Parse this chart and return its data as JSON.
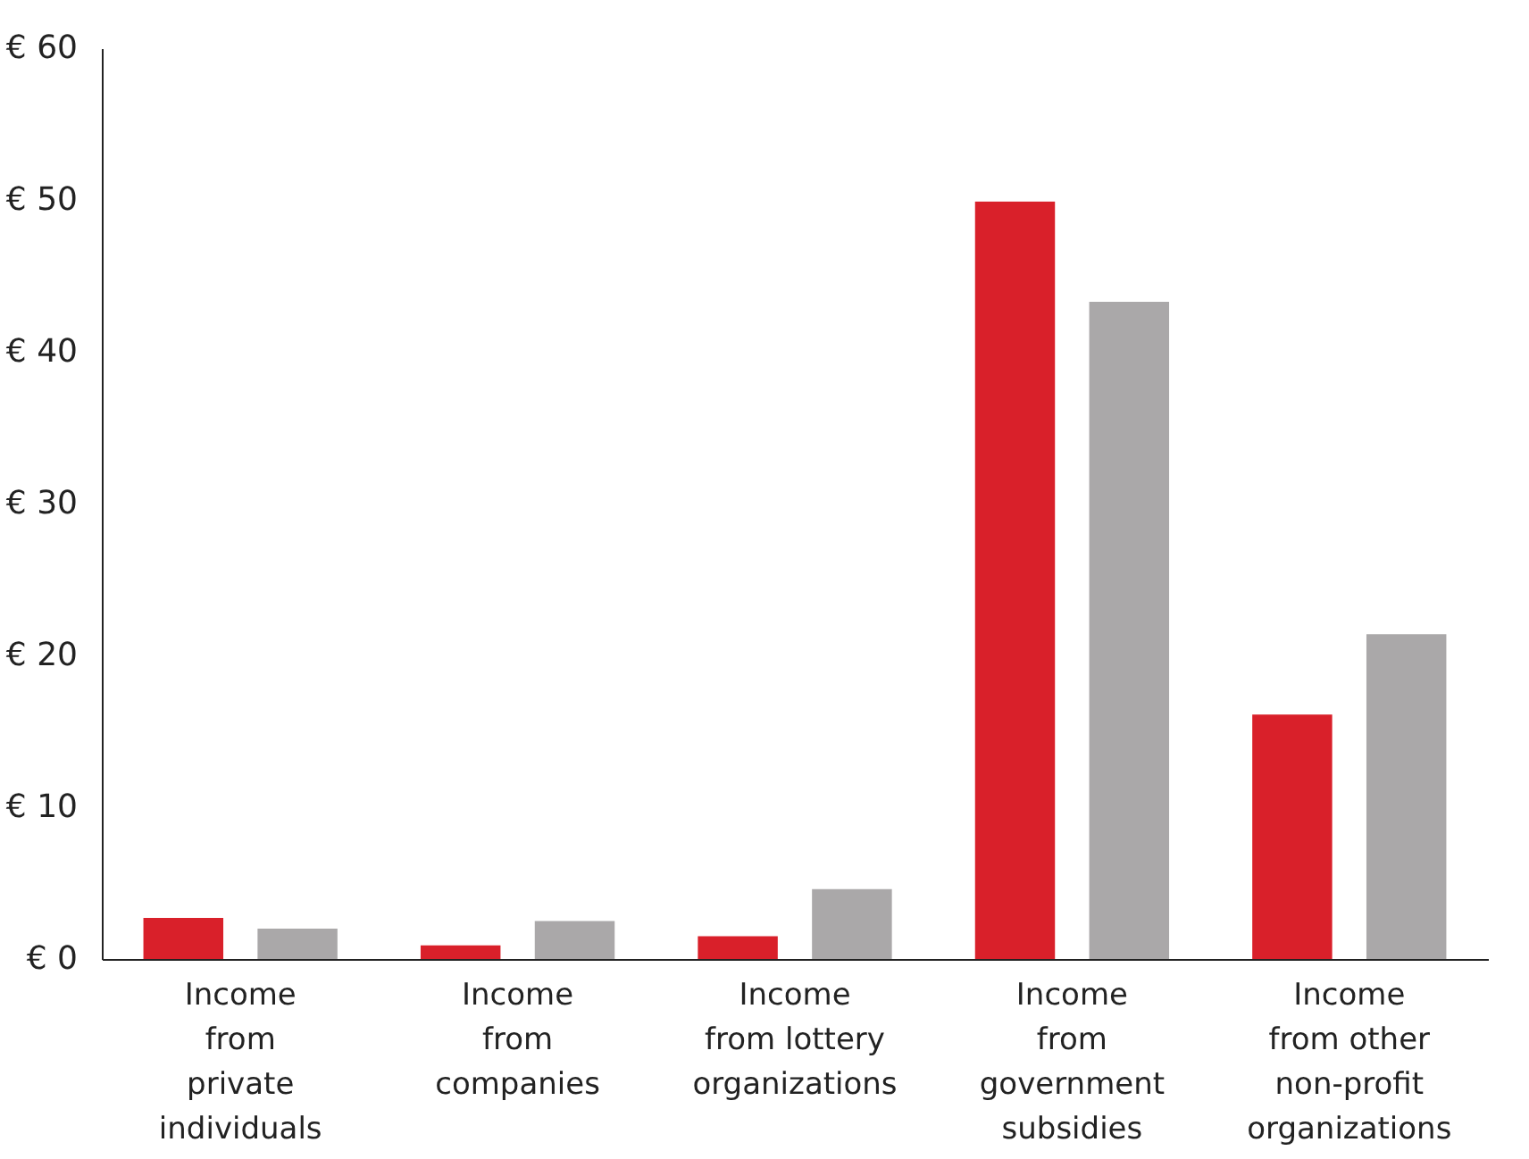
{
  "chart_data": {
    "type": "bar",
    "categories": [
      "Income\nfrom\nprivate\nindividuals",
      "Income\nfrom\ncompanies",
      "Income\nfrom lottery\norganizations",
      "Income\nfrom\ngovernment\nsubsidies",
      "Income\nfrom other\nnon-profit\norganizations"
    ],
    "series": [
      {
        "color": "#d9202a",
        "values": [
          2.7,
          0.9,
          1.5,
          49.9,
          16.1
        ]
      },
      {
        "color": "#aaa8a9",
        "values": [
          2.0,
          2.5,
          4.6,
          43.3,
          21.4
        ]
      }
    ],
    "ylim": [
      0,
      60
    ],
    "yticks": [
      {
        "value": 0,
        "label": "€ 0"
      },
      {
        "value": 10,
        "label": "€ 10"
      },
      {
        "value": 20,
        "label": "€ 20"
      },
      {
        "value": 30,
        "label": "€ 30"
      },
      {
        "value": 40,
        "label": "€ 40"
      },
      {
        "value": 50,
        "label": "€ 50"
      },
      {
        "value": 60,
        "label": "€ 60"
      }
    ],
    "grid": false,
    "legend": false
  }
}
